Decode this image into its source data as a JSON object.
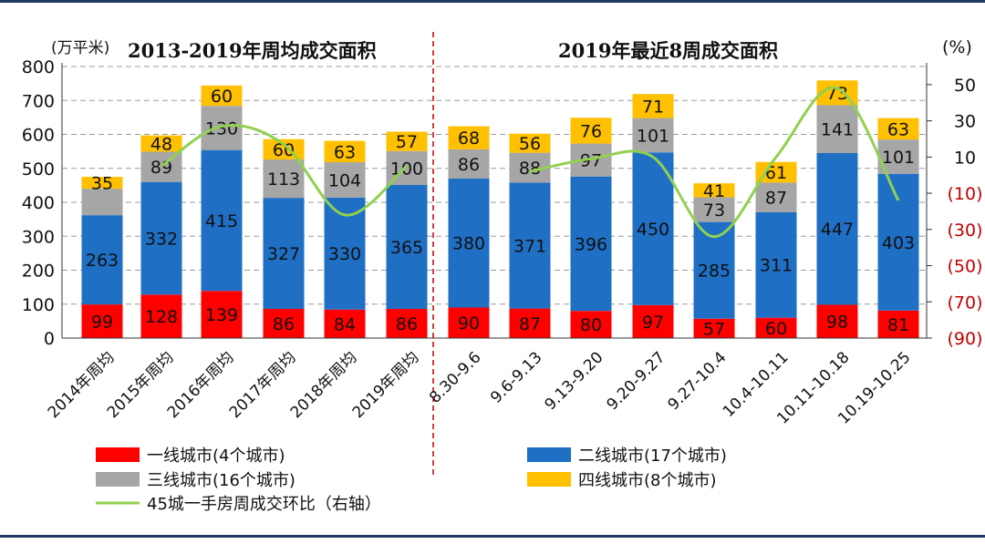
{
  "chart_data": {
    "type": "bar",
    "stacked": true,
    "titles": [
      "2013-2019年周均成交面积",
      "2019年最近8周成交面积"
    ],
    "left_unit": "(万平米)",
    "right_unit": "(%)",
    "categories": [
      "2014年周均",
      "2015年周均",
      "2016年周均",
      "2017年周均",
      "2018年周均",
      "2019年周均",
      "8.30-9.6",
      "9.6-9.13",
      "9.13-9.20",
      "9.20-9.27",
      "9.27-10.4",
      "10.4-10.11",
      "10.11-10.18",
      "10.19-10.25"
    ],
    "series": [
      {
        "name": "一线城市(4个城市)",
        "color": "#ff0000",
        "values": [
          99,
          128,
          139,
          86,
          84,
          86,
          90,
          87,
          80,
          97,
          57,
          60,
          98,
          81
        ]
      },
      {
        "name": "二线城市(17个城市)",
        "color": "#1f6fc5",
        "values": [
          263,
          332,
          415,
          327,
          330,
          365,
          380,
          371,
          396,
          450,
          285,
          311,
          447,
          403
        ]
      },
      {
        "name": "三线城市(16个城市)",
        "color": "#a6a6a6",
        "values": [
          null,
          89,
          130,
          113,
          104,
          100,
          86,
          88,
          97,
          101,
          73,
          87,
          141,
          101
        ]
      },
      {
        "name": "四线城市(8个城市)",
        "color": "#ffc000",
        "values": [
          35,
          48,
          60,
          60,
          63,
          57,
          68,
          56,
          76,
          71,
          41,
          61,
          73,
          63
        ]
      }
    ],
    "line_series": {
      "name": "45城一手房周成交环比（右轴）",
      "color": "#92d050",
      "axis": "right",
      "segments": [
        {
          "categories": [
            "2015年周均",
            "2016年周均",
            "2017年周均",
            "2018年周均",
            "2019年周均"
          ],
          "values": [
            5,
            27,
            17,
            -22,
            5
          ]
        },
        {
          "categories": [
            "9.6-9.13",
            "9.13-9.20",
            "9.20-9.27",
            "9.27-10.4",
            "10.4-10.11",
            "10.11-10.18",
            "10.19-10.25"
          ],
          "values": [
            2,
            9,
            10,
            -34,
            10,
            48,
            -14
          ]
        }
      ]
    },
    "y_left": {
      "min": 0,
      "max": 800,
      "ticks": [
        "0",
        "100",
        "200",
        "300",
        "400",
        "500",
        "600",
        "700",
        "800"
      ]
    },
    "y_right": {
      "min": -90,
      "max": 60,
      "ticks": [
        "(90)",
        "(70)",
        "(50)",
        "(30)",
        "(10)",
        "10",
        "30",
        "50"
      ]
    },
    "grid": true,
    "legend": "bottom"
  }
}
